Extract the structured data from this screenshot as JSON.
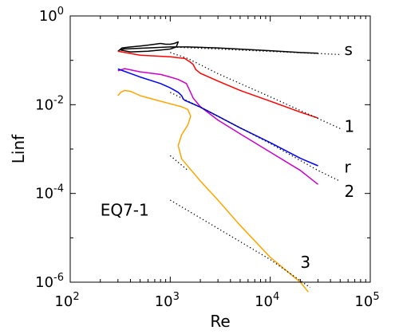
{
  "chart_data": {
    "type": "line",
    "xlabel": "Re",
    "ylabel": "Linf",
    "xscale": "log",
    "yscale": "log",
    "xlim": [
      100,
      100000
    ],
    "ylim": [
      1e-06,
      1
    ],
    "grid": false,
    "x_ticks": [
      {
        "value": 100,
        "base": "10",
        "exp": "2"
      },
      {
        "value": 1000,
        "base": "10",
        "exp": "3"
      },
      {
        "value": 10000,
        "base": "10",
        "exp": "4"
      },
      {
        "value": 100000,
        "base": "10",
        "exp": "5"
      }
    ],
    "y_ticks": [
      {
        "value": 1e-06,
        "base": "10",
        "exp": "-6"
      },
      {
        "value": 0.0001,
        "base": "10",
        "exp": "-4"
      },
      {
        "value": 0.01,
        "base": "10",
        "exp": "-2"
      },
      {
        "value": 1,
        "base": "10",
        "exp": "0"
      }
    ],
    "annotations": [
      {
        "text": "EQ7-1",
        "x": 200,
        "y": 3.16e-05
      },
      {
        "text": "s",
        "x": 55000,
        "y": 0.132
      },
      {
        "text": "1",
        "x": 55000,
        "y": 0.00245
      },
      {
        "text": "r",
        "x": 55000,
        "y": 0.000295
      },
      {
        "text": "2",
        "x": 55000,
        "y": 8.32e-05
      },
      {
        "text": "3",
        "x": 20000,
        "y": 2.09e-06
      }
    ],
    "series": [
      {
        "color": "#000000",
        "points": [
          [
            300,
            0.16
          ],
          [
            330,
            0.19
          ],
          [
            400,
            0.2
          ],
          [
            500,
            0.21
          ],
          [
            600,
            0.22
          ],
          [
            700,
            0.23
          ],
          [
            800,
            0.24
          ],
          [
            900,
            0.23
          ],
          [
            1000,
            0.23
          ],
          [
            1100,
            0.24
          ],
          [
            1200,
            0.26
          ],
          [
            1150,
            0.2
          ],
          [
            1000,
            0.18
          ],
          [
            800,
            0.17
          ],
          [
            600,
            0.16
          ],
          [
            400,
            0.155
          ],
          [
            320,
            0.17
          ],
          [
            340,
            0.18
          ],
          [
            1000,
            0.2
          ],
          [
            1500,
            0.2
          ],
          [
            3000,
            0.19
          ],
          [
            10000,
            0.165
          ],
          [
            20000,
            0.15
          ],
          [
            30000,
            0.145
          ]
        ]
      },
      {
        "color": "#ff0000",
        "points": [
          [
            300,
            0.16
          ],
          [
            500,
            0.13
          ],
          [
            1000,
            0.12
          ],
          [
            1400,
            0.11
          ],
          [
            1600,
            0.09
          ],
          [
            1700,
            0.08
          ],
          [
            1800,
            0.062
          ],
          [
            2000,
            0.051
          ],
          [
            3000,
            0.034
          ],
          [
            5000,
            0.021
          ],
          [
            10000,
            0.012
          ],
          [
            20000,
            0.0068
          ],
          [
            30000,
            0.005
          ]
        ]
      },
      {
        "color": "#cc00cc",
        "points": [
          [
            300,
            0.058
          ],
          [
            350,
            0.065
          ],
          [
            500,
            0.055
          ],
          [
            800,
            0.048
          ],
          [
            1000,
            0.042
          ],
          [
            1200,
            0.037
          ],
          [
            1450,
            0.03
          ],
          [
            1550,
            0.022
          ],
          [
            1700,
            0.014
          ],
          [
            2000,
            0.009
          ],
          [
            3000,
            0.0045
          ],
          [
            5000,
            0.0022
          ],
          [
            10000,
            0.00085
          ],
          [
            20000,
            0.00033
          ],
          [
            30000,
            0.00016
          ]
        ]
      },
      {
        "color": "#0000ff",
        "points": [
          [
            300,
            0.064
          ],
          [
            500,
            0.042
          ],
          [
            800,
            0.03
          ],
          [
            1000,
            0.024
          ],
          [
            1200,
            0.019
          ],
          [
            1300,
            0.016
          ],
          [
            1350,
            0.0135
          ],
          [
            1400,
            0.0125
          ],
          [
            1600,
            0.011
          ],
          [
            2000,
            0.0088
          ],
          [
            3000,
            0.0055
          ],
          [
            5000,
            0.003
          ],
          [
            10000,
            0.0014
          ],
          [
            20000,
            0.00062
          ],
          [
            30000,
            0.00042
          ]
        ]
      },
      {
        "color": "#ffa500",
        "points": [
          [
            300,
            0.016
          ],
          [
            320,
            0.019
          ],
          [
            350,
            0.021
          ],
          [
            400,
            0.02
          ],
          [
            500,
            0.016
          ],
          [
            700,
            0.013
          ],
          [
            1000,
            0.0105
          ],
          [
            1300,
            0.009
          ],
          [
            1500,
            0.0078
          ],
          [
            1600,
            0.0055
          ],
          [
            1500,
            0.0035
          ],
          [
            1300,
            0.0021
          ],
          [
            1200,
            0.0012
          ],
          [
            1300,
            0.0006
          ],
          [
            2000,
            0.00019
          ],
          [
            3000,
            7.08e-05
          ],
          [
            5000,
            1.91e-05
          ],
          [
            10000,
            3.63e-06
          ],
          [
            20000,
            1e-06
          ],
          [
            24000,
            6e-07
          ]
        ]
      }
    ],
    "reference_lines": [
      {
        "color": "#000000",
        "points": [
          [
            1000,
            0.2
          ],
          [
            50000,
            0.135
          ]
        ]
      },
      {
        "color": "#000000",
        "points": [
          [
            1000,
            0.15
          ],
          [
            1500,
            0.11
          ],
          [
            3000,
            0.05
          ],
          [
            10000,
            0.015
          ],
          [
            50000,
            0.0029
          ]
        ]
      },
      {
        "color": "#000000",
        "points": [
          [
            1000,
            0.019
          ],
          [
            3000,
            0.0055
          ],
          [
            10000,
            0.00133
          ],
          [
            30000,
            0.00033
          ],
          [
            50000,
            0.000188
          ]
        ]
      },
      {
        "color": "#000000",
        "points": [
          [
            1000,
            7.08e-05
          ],
          [
            10000,
            3.24e-06
          ],
          [
            25000,
            7.6e-07
          ]
        ]
      },
      {
        "color": "#000000",
        "points": [
          [
            1000,
            0.000708
          ],
          [
            1500,
            0.000331
          ]
        ]
      }
    ]
  }
}
